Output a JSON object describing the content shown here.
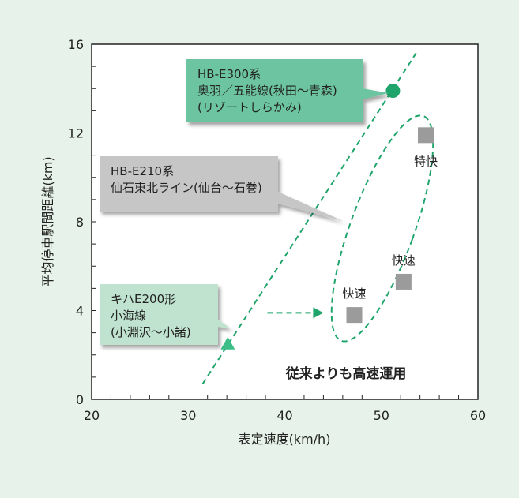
{
  "chart_data": {
    "type": "scatter",
    "xlabel": "表定速度(km/h)",
    "ylabel": "平均停車駅間距離(km)",
    "xlim": [
      20,
      60
    ],
    "ylim": [
      0,
      16
    ],
    "x_ticks": [
      "20",
      "30",
      "40",
      "50",
      "60"
    ],
    "y_ticks": [
      "0",
      "4",
      "8",
      "12",
      "16"
    ],
    "grid": false,
    "points": [
      {
        "name": "hb-e300",
        "x": 51.2,
        "y": 13.9,
        "marker": "circle",
        "color": "#1fa56b"
      },
      {
        "name": "kiha-e200",
        "x": 34.1,
        "y": 2.5,
        "marker": "triangle",
        "color": "#3dbd88"
      },
      {
        "name": "tokkai",
        "x": 54.6,
        "y": 11.9,
        "marker": "square",
        "color": "#9b9b9b",
        "label": "特快"
      },
      {
        "name": "kaisoku-1",
        "x": 52.3,
        "y": 5.3,
        "marker": "square",
        "color": "#9b9b9b",
        "label": "快速"
      },
      {
        "name": "kaisoku-2",
        "x": 47.2,
        "y": 3.8,
        "marker": "square",
        "color": "#9b9b9b",
        "label": "快速"
      }
    ],
    "trend_line": {
      "from": [
        31.5,
        0.7
      ],
      "to": [
        53.6,
        15.6
      ],
      "style": "dashed",
      "color": "#1fa56b"
    },
    "ellipse": {
      "cx": 50.1,
      "cy": 7.7,
      "rx": 5.5,
      "ry": 5.5,
      "style": "dashed",
      "color": "#1fa56b"
    },
    "arrow": {
      "from": [
        38.2,
        3.9
      ],
      "to": [
        44.0,
        3.9
      ],
      "style": "dashed",
      "color": "#1fa56b"
    },
    "annotations": [
      {
        "name": "hb-e300",
        "lines": [
          "HB-E300系",
          "奥羽／五能線(秋田～青森)",
          "(リゾートしらかみ)"
        ],
        "color": "#6cc4a0"
      },
      {
        "name": "hb-e210",
        "lines": [
          "HB-E210系",
          "仙石東北ライン(仙台～石巻)"
        ],
        "color": "#c6c6c6"
      },
      {
        "name": "kiha-e200",
        "lines": [
          "キハE200形",
          "小海線",
          "(小淵沢～小諸)"
        ],
        "color": "#bfe3cf"
      }
    ],
    "note": "従来よりも高速運用"
  }
}
